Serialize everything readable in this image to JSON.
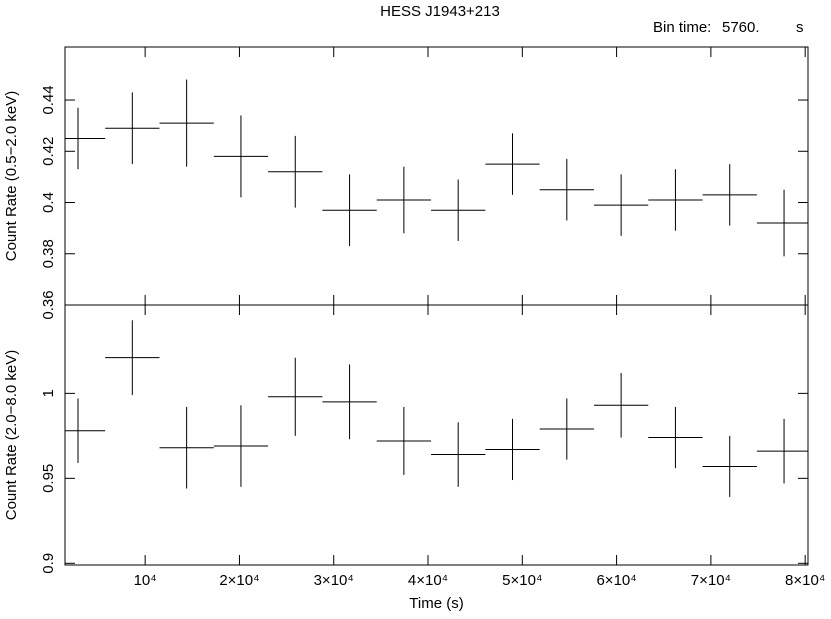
{
  "title": "HESS J1943+213",
  "annotation": {
    "label": "Bin time:",
    "value": "5760.",
    "unit": "s"
  },
  "chart_data": [
    {
      "type": "errorbar",
      "ylabel": "Count Rate (0.5−2.0 keV)",
      "x": [
        2880,
        8640,
        14400,
        20160,
        25920,
        31680,
        37440,
        43200,
        48960,
        54720,
        60480,
        66240,
        72000,
        77760
      ],
      "xerr": [
        2880,
        2880,
        2880,
        2880,
        2880,
        2880,
        2880,
        2880,
        2880,
        2880,
        2880,
        2880,
        2880,
        2880
      ],
      "values": [
        0.425,
        0.429,
        0.431,
        0.418,
        0.412,
        0.397,
        0.401,
        0.397,
        0.415,
        0.405,
        0.399,
        0.401,
        0.403,
        0.392
      ],
      "errors": [
        0.012,
        0.014,
        0.017,
        0.016,
        0.014,
        0.014,
        0.013,
        0.012,
        0.012,
        0.012,
        0.012,
        0.012,
        0.012,
        0.013
      ],
      "color": "#000000",
      "xlim": [
        1500,
        80300
      ],
      "ylim": [
        0.36,
        0.4607
      ],
      "yticks": [
        0.36,
        0.38,
        0.4,
        0.42,
        0.44
      ]
    },
    {
      "type": "errorbar",
      "ylabel": "Count Rate (2.0−8.0 keV)",
      "xlabel": "Time (s)",
      "x": [
        2880,
        8640,
        14400,
        20160,
        25920,
        31680,
        37440,
        43200,
        48960,
        54720,
        60480,
        66240,
        72000,
        77760
      ],
      "xerr": [
        2880,
        2880,
        2880,
        2880,
        2880,
        2880,
        2880,
        2880,
        2880,
        2880,
        2880,
        2880,
        2880,
        2880
      ],
      "values": [
        0.978,
        1.021,
        0.968,
        0.969,
        0.998,
        0.995,
        0.972,
        0.964,
        0.967,
        0.979,
        0.993,
        0.974,
        0.957,
        0.966
      ],
      "errors": [
        0.019,
        0.022,
        0.024,
        0.024,
        0.023,
        0.022,
        0.02,
        0.019,
        0.018,
        0.018,
        0.019,
        0.018,
        0.018,
        0.019
      ],
      "color": "#000000",
      "xlim": [
        1500,
        80300
      ],
      "ylim": [
        0.899,
        1.052
      ],
      "xticks": [
        {
          "value": 10000,
          "label": "10⁴"
        },
        {
          "value": 20000,
          "label": "2×10⁴"
        },
        {
          "value": 30000,
          "label": "3×10⁴"
        },
        {
          "value": 40000,
          "label": "4×10⁴"
        },
        {
          "value": 50000,
          "label": "5×10⁴"
        },
        {
          "value": 60000,
          "label": "6×10⁴"
        },
        {
          "value": 70000,
          "label": "7×10⁴"
        },
        {
          "value": 80000,
          "label": "8×10⁴"
        }
      ],
      "yticks": [
        0.9,
        0.95,
        1
      ]
    }
  ]
}
